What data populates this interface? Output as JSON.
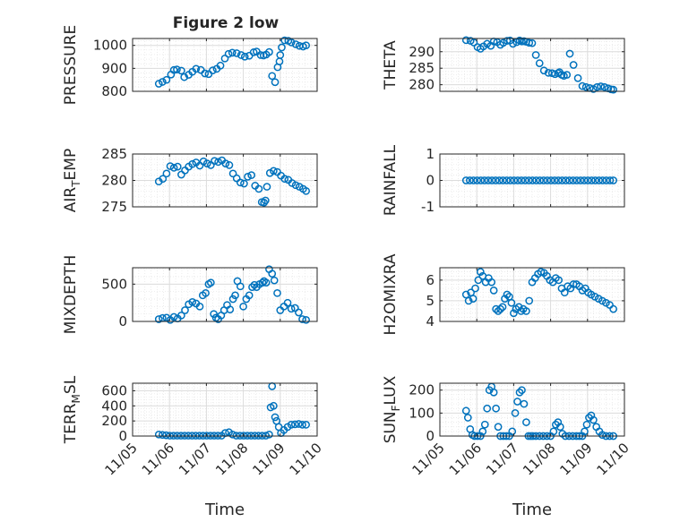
{
  "figure": {
    "title": "Figure 2 low"
  },
  "chart_data": [
    {
      "type": "scatter",
      "ylabel": "PRESSURE",
      "ylim": [
        800,
        1030
      ],
      "yticks": [
        800,
        900,
        1000
      ],
      "ytick_labels": [
        "800",
        "900",
        "1000"
      ],
      "grid": true,
      "marker_color": "#0072BD",
      "x": [
        5.71,
        5.81,
        5.92,
        6.04,
        6.12,
        6.2,
        6.32,
        6.4,
        6.52,
        6.62,
        6.72,
        6.85,
        6.96,
        7.06,
        7.17,
        7.28,
        7.38,
        7.5,
        7.6,
        7.7,
        7.82,
        7.94,
        8.04,
        8.16,
        8.28,
        8.36,
        8.47,
        8.55,
        8.62,
        8.7,
        8.78,
        8.86,
        8.93,
        8.98,
        9.0,
        9.04,
        9.12,
        9.22,
        9.3,
        9.42,
        9.52,
        9.62,
        9.7
      ],
      "y": [
        833,
        841,
        850,
        873,
        893,
        895,
        890,
        862,
        872,
        885,
        898,
        893,
        878,
        875,
        891,
        898,
        912,
        943,
        963,
        968,
        966,
        958,
        951,
        955,
        970,
        973,
        958,
        956,
        960,
        971,
        867,
        840,
        905,
        930,
        958,
        991,
        1022,
        1020,
        1013,
        1005,
        998,
        995,
        1000
      ]
    },
    {
      "type": "scatter",
      "ylabel": "THETA",
      "ylim": [
        278,
        294
      ],
      "yticks": [
        280,
        285,
        290
      ],
      "ytick_labels": [
        "280",
        "285",
        "290"
      ],
      "grid": true,
      "marker_color": "#0072BD",
      "x": [
        5.71,
        5.83,
        5.92,
        6.02,
        6.1,
        6.18,
        6.28,
        6.38,
        6.46,
        6.55,
        6.64,
        6.72,
        6.82,
        6.9,
        6.98,
        7.08,
        7.16,
        7.22,
        7.28,
        7.34,
        7.42,
        7.5,
        7.6,
        7.7,
        7.82,
        7.94,
        8.04,
        8.12,
        8.2,
        8.24,
        8.3,
        8.36,
        8.44,
        8.52,
        8.62,
        8.74,
        8.86,
        8.96,
        9.06,
        9.16,
        9.26,
        9.36,
        9.46,
        9.56,
        9.64,
        9.7
      ],
      "y": [
        293.5,
        293.3,
        292.8,
        291.4,
        290.9,
        291.6,
        292.4,
        291.8,
        293.1,
        292.9,
        292.1,
        292.7,
        293.3,
        293.4,
        292.4,
        292.9,
        293.4,
        293.1,
        293.2,
        293.0,
        292.7,
        292.6,
        289.0,
        286.5,
        284.3,
        283.6,
        283.5,
        283.2,
        283.5,
        283.8,
        283.0,
        282.7,
        283.0,
        289.4,
        286.0,
        282.0,
        279.6,
        279.3,
        279.0,
        278.7,
        279.3,
        279.5,
        279.3,
        278.9,
        278.6,
        278.5
      ]
    },
    {
      "type": "scatter",
      "ylabel": "AIR_TEMP",
      "ylabel_sub": "T",
      "ylim": [
        275,
        285
      ],
      "yticks": [
        275,
        280,
        285
      ],
      "ytick_labels": [
        "275",
        "280",
        "285"
      ],
      "grid": true,
      "marker_color": "#0072BD",
      "x": [
        5.71,
        5.82,
        5.92,
        6.02,
        6.12,
        6.22,
        6.32,
        6.42,
        6.52,
        6.62,
        6.72,
        6.82,
        6.92,
        7.02,
        7.12,
        7.22,
        7.32,
        7.42,
        7.52,
        7.62,
        7.72,
        7.82,
        7.92,
        8.02,
        8.12,
        8.22,
        8.32,
        8.42,
        8.5,
        8.56,
        8.6,
        8.64,
        8.72,
        8.82,
        8.92,
        9.02,
        9.12,
        9.22,
        9.32,
        9.42,
        9.52,
        9.62,
        9.7
      ],
      "y": [
        279.8,
        280.3,
        281.3,
        282.7,
        282.4,
        282.6,
        281.1,
        281.9,
        282.6,
        283.1,
        283.4,
        282.8,
        283.6,
        283.2,
        282.9,
        283.7,
        283.5,
        283.8,
        283.2,
        282.9,
        281.3,
        280.4,
        279.6,
        279.4,
        280.7,
        281.0,
        279.0,
        278.4,
        275.9,
        275.8,
        276.2,
        278.8,
        281.4,
        281.8,
        281.6,
        280.9,
        280.3,
        280.1,
        279.5,
        279.1,
        278.8,
        278.4,
        278.0
      ]
    },
    {
      "type": "scatter",
      "ylabel": "RAINFALL",
      "ylim": [
        -1,
        1
      ],
      "yticks": [
        -1,
        0,
        1
      ],
      "ytick_labels": [
        "-1",
        "0",
        "1"
      ],
      "grid": true,
      "marker_color": "#0072BD",
      "x": [
        5.71,
        5.81,
        5.91,
        6.01,
        6.11,
        6.21,
        6.31,
        6.41,
        6.51,
        6.61,
        6.71,
        6.81,
        6.91,
        7.01,
        7.11,
        7.21,
        7.31,
        7.41,
        7.51,
        7.61,
        7.71,
        7.81,
        7.91,
        8.01,
        8.11,
        8.21,
        8.31,
        8.41,
        8.51,
        8.61,
        8.71,
        8.81,
        8.91,
        9.01,
        9.11,
        9.21,
        9.31,
        9.41,
        9.51,
        9.61,
        9.7
      ],
      "y": [
        0,
        0,
        0,
        0,
        0,
        0,
        0,
        0,
        0,
        0,
        0,
        0,
        0,
        0,
        0,
        0,
        0,
        0,
        0,
        0,
        0,
        0,
        0,
        0,
        0,
        0,
        0,
        0,
        0,
        0,
        0,
        0,
        0,
        0,
        0,
        0,
        0,
        0,
        0,
        0,
        0
      ]
    },
    {
      "type": "scatter",
      "ylabel": "MIXDEPTH",
      "ylim": [
        0,
        720
      ],
      "yticks": [
        0,
        500
      ],
      "ytick_labels": [
        "0",
        "500"
      ],
      "grid": true,
      "marker_color": "#0072BD",
      "x": [
        5.71,
        5.81,
        5.92,
        6.02,
        6.12,
        6.22,
        6.32,
        6.42,
        6.52,
        6.62,
        6.72,
        6.82,
        6.9,
        6.98,
        7.06,
        7.12,
        7.2,
        7.26,
        7.32,
        7.4,
        7.48,
        7.56,
        7.64,
        7.72,
        7.78,
        7.84,
        7.92,
        8.0,
        8.08,
        8.16,
        8.24,
        8.3,
        8.36,
        8.44,
        8.52,
        8.56,
        8.62,
        8.7,
        8.78,
        8.84,
        8.92,
        9.0,
        9.1,
        9.2,
        9.3,
        9.4,
        9.5,
        9.6,
        9.7
      ],
      "y": [
        30,
        45,
        50,
        20,
        60,
        40,
        80,
        150,
        230,
        260,
        240,
        200,
        350,
        380,
        500,
        520,
        100,
        50,
        30,
        80,
        150,
        220,
        160,
        300,
        350,
        540,
        470,
        200,
        300,
        350,
        460,
        490,
        460,
        500,
        520,
        540,
        520,
        700,
        640,
        550,
        380,
        150,
        200,
        250,
        170,
        180,
        120,
        30,
        20
      ]
    },
    {
      "type": "scatter",
      "ylabel": "H2OMIXRA",
      "ylim": [
        4,
        6.6
      ],
      "yticks": [
        4,
        5,
        6
      ],
      "ytick_labels": [
        "4",
        "5",
        "6"
      ],
      "grid": true,
      "marker_color": "#0072BD",
      "x": [
        5.71,
        5.78,
        5.84,
        5.9,
        5.96,
        6.04,
        6.1,
        6.16,
        6.24,
        6.32,
        6.4,
        6.46,
        6.52,
        6.58,
        6.64,
        6.7,
        6.76,
        6.82,
        6.88,
        6.94,
        7.0,
        7.06,
        7.14,
        7.2,
        7.26,
        7.34,
        7.42,
        7.5,
        7.58,
        7.66,
        7.74,
        7.82,
        7.9,
        7.98,
        8.06,
        8.14,
        8.22,
        8.3,
        8.38,
        8.46,
        8.54,
        8.62,
        8.7,
        8.78,
        8.86,
        8.94,
        9.02,
        9.1,
        9.2,
        9.3,
        9.4,
        9.5,
        9.6,
        9.7
      ],
      "y": [
        5.3,
        5.0,
        5.4,
        5.1,
        5.6,
        6.0,
        6.4,
        6.2,
        5.9,
        6.1,
        5.9,
        5.5,
        4.6,
        4.5,
        4.6,
        4.7,
        5.1,
        5.3,
        5.2,
        4.9,
        4.4,
        4.6,
        4.7,
        4.5,
        4.6,
        4.5,
        5.0,
        5.9,
        6.1,
        6.3,
        6.4,
        6.35,
        6.2,
        6.0,
        5.9,
        6.1,
        6.0,
        5.6,
        5.4,
        5.7,
        5.6,
        5.8,
        5.8,
        5.7,
        5.5,
        5.6,
        5.4,
        5.3,
        5.2,
        5.1,
        5.0,
        4.9,
        4.8,
        4.6
      ]
    },
    {
      "type": "scatter",
      "ylabel": "TERR_MSL",
      "ylabel_sub": "M",
      "ylim": [
        0,
        700
      ],
      "yticks": [
        0,
        200,
        400,
        600
      ],
      "ytick_labels": [
        "0",
        "200",
        "400",
        "600"
      ],
      "grid": true,
      "marker_color": "#0072BD",
      "x": [
        5.71,
        5.81,
        5.91,
        6.01,
        6.11,
        6.21,
        6.31,
        6.41,
        6.51,
        6.61,
        6.71,
        6.81,
        6.91,
        7.01,
        7.11,
        7.21,
        7.31,
        7.41,
        7.51,
        7.61,
        7.71,
        7.81,
        7.91,
        8.01,
        8.11,
        8.21,
        8.31,
        8.41,
        8.51,
        8.61,
        8.7,
        8.74,
        8.78,
        8.82,
        8.86,
        8.9,
        8.96,
        9.02,
        9.1,
        9.2,
        9.3,
        9.4,
        9.5,
        9.6,
        9.7
      ],
      "y": [
        20,
        15,
        10,
        5,
        5,
        5,
        5,
        5,
        5,
        5,
        5,
        5,
        5,
        5,
        5,
        5,
        5,
        5,
        40,
        50,
        20,
        5,
        5,
        5,
        5,
        5,
        5,
        5,
        5,
        5,
        20,
        380,
        660,
        400,
        250,
        200,
        120,
        40,
        80,
        120,
        150,
        155,
        160,
        150,
        150
      ]
    },
    {
      "type": "scatter",
      "ylabel": "SUN_FLUX",
      "ylabel_sub": "F",
      "ylim": [
        0,
        230
      ],
      "yticks": [
        0,
        100,
        200
      ],
      "ytick_labels": [
        "0",
        "100",
        "200"
      ],
      "grid": true,
      "marker_color": "#0072BD",
      "x": [
        5.71,
        5.76,
        5.82,
        5.88,
        5.94,
        6.02,
        6.1,
        6.16,
        6.22,
        6.28,
        6.34,
        6.4,
        6.46,
        6.52,
        6.58,
        6.64,
        6.72,
        6.8,
        6.88,
        6.96,
        7.04,
        7.1,
        7.16,
        7.22,
        7.28,
        7.34,
        7.4,
        7.46,
        7.52,
        7.6,
        7.7,
        7.8,
        7.9,
        8.0,
        8.08,
        8.14,
        8.2,
        8.26,
        8.32,
        8.4,
        8.5,
        8.6,
        8.7,
        8.78,
        8.86,
        8.92,
        8.98,
        9.04,
        9.1,
        9.16,
        9.24,
        9.32,
        9.4,
        9.5,
        9.6,
        9.7
      ],
      "y": [
        110,
        80,
        30,
        5,
        0,
        0,
        0,
        20,
        50,
        120,
        200,
        215,
        190,
        120,
        40,
        0,
        0,
        0,
        0,
        20,
        100,
        150,
        190,
        200,
        140,
        60,
        0,
        0,
        0,
        0,
        0,
        0,
        0,
        0,
        20,
        50,
        60,
        40,
        10,
        0,
        0,
        0,
        0,
        0,
        0,
        20,
        50,
        80,
        90,
        70,
        40,
        20,
        5,
        0,
        0,
        0
      ]
    }
  ],
  "axes": {
    "xlabel": "Time",
    "xlim": [
      5,
      10
    ],
    "xtick_values": [
      5,
      6,
      7,
      8,
      9,
      10
    ],
    "xtick_labels": [
      "11/05",
      "11/06",
      "11/07",
      "11/08",
      "11/09",
      "11/10"
    ]
  }
}
